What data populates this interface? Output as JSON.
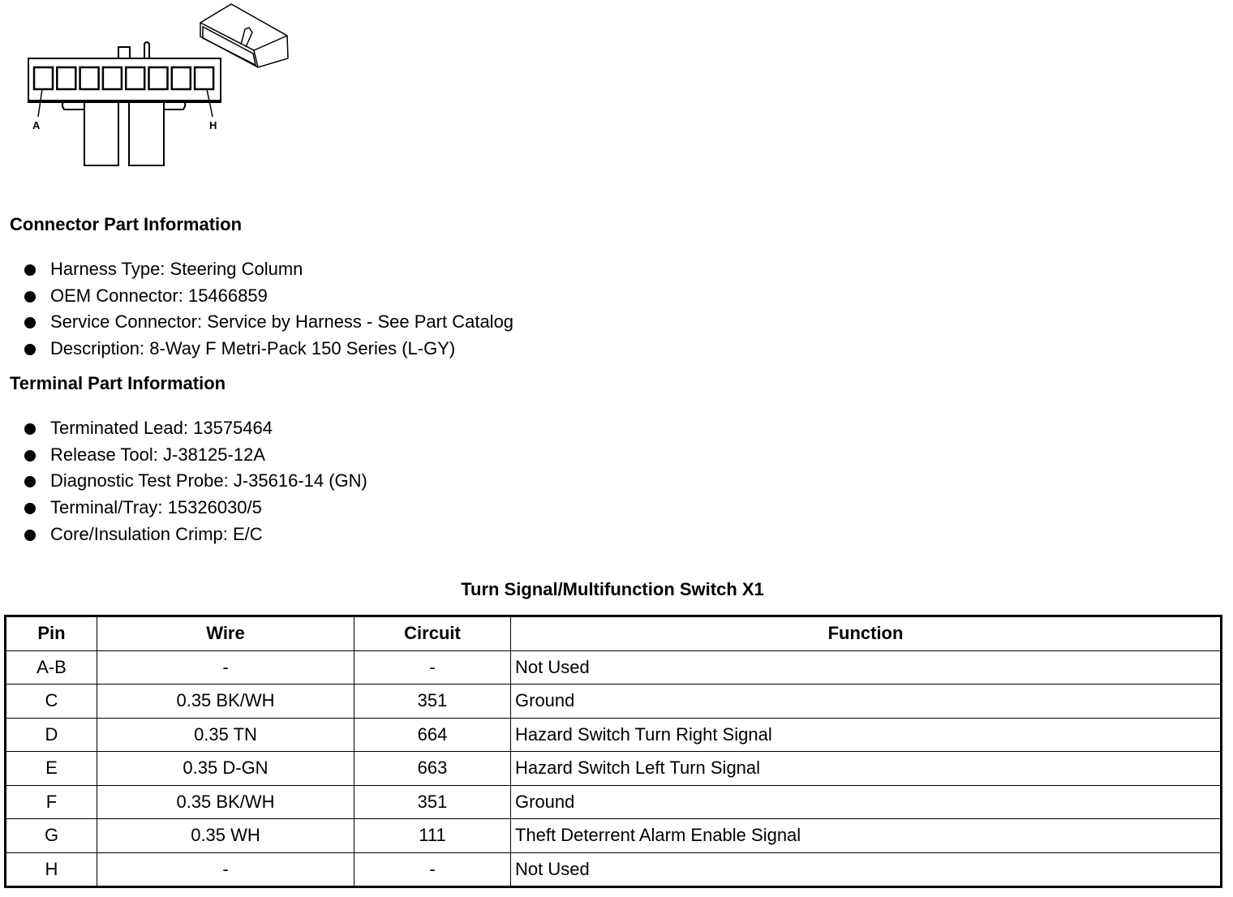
{
  "diagram": {
    "pin_labels": [
      "A",
      "H"
    ]
  },
  "connector_section": {
    "heading": "Connector Part Information",
    "items": [
      "Harness Type: Steering Column",
      "OEM Connector: 15466859",
      "Service Connector: Service by Harness - See Part Catalog",
      "Description: 8-Way F Metri-Pack 150 Series (L-GY)"
    ]
  },
  "terminal_section": {
    "heading": "Terminal Part Information",
    "items": [
      "Terminated Lead: 13575464",
      "Release Tool: J-38125-12A",
      "Diagnostic Test Probe: J-35616-14 (GN)",
      "Terminal/Tray: 15326030/5",
      "Core/Insulation Crimp: E/C"
    ]
  },
  "table": {
    "title": "Turn Signal/Multifunction Switch X1",
    "headers": [
      "Pin",
      "Wire",
      "Circuit",
      "Function"
    ],
    "rows": [
      [
        "A-B",
        "-",
        "-",
        "Not Used"
      ],
      [
        "C",
        "0.35 BK/WH",
        "351",
        "Ground"
      ],
      [
        "D",
        "0.35 TN",
        "664",
        "Hazard Switch Turn Right Signal"
      ],
      [
        "E",
        "0.35 D-GN",
        "663",
        "Hazard Switch Left Turn Signal"
      ],
      [
        "F",
        "0.35 BK/WH",
        "351",
        "Ground"
      ],
      [
        "G",
        "0.35 WH",
        "111",
        "Theft Deterrent Alarm Enable Signal"
      ],
      [
        "H",
        "-",
        "-",
        "Not Used"
      ]
    ]
  }
}
